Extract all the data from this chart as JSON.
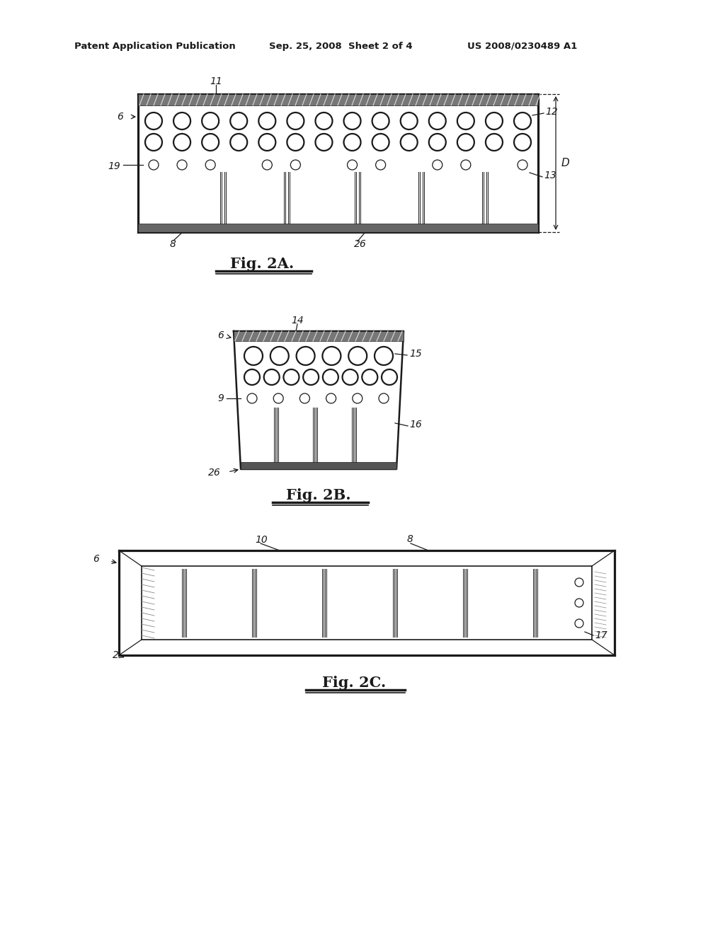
{
  "bg_color": "#ffffff",
  "header_text": "Patent Application Publication",
  "header_date": "Sep. 25, 2008  Sheet 2 of 4",
  "header_patent": "US 2008/0230489 A1",
  "fig2a_label": "Fig. 2A.",
  "fig2b_label": "Fig. 2B.",
  "fig2c_label": "Fig. 2C.",
  "line_color": "#1a1a1a",
  "line_width": 1.8,
  "thin_line": 0.9,
  "hatch_color": "#333333"
}
